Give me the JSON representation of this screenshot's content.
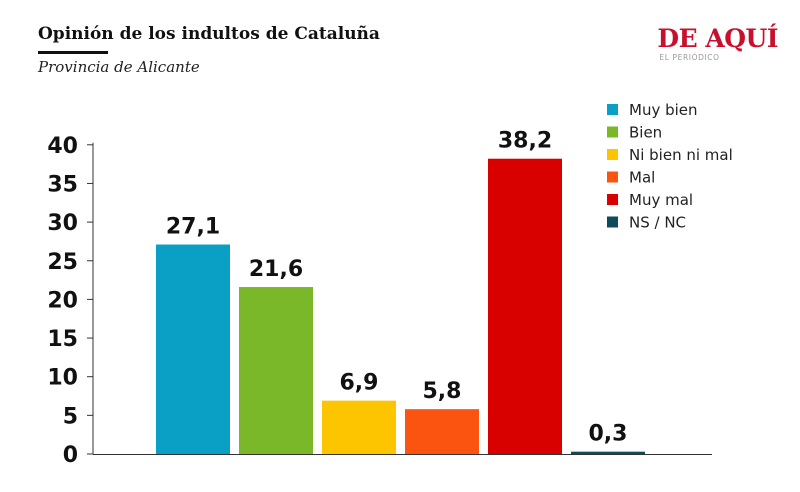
{
  "header": {
    "title": "Opinión de los indultos de Cataluña",
    "subtitle": "Provincia de Alicante"
  },
  "brand": {
    "name": "DE AQUÍ",
    "sub": "EL PERIÓDICO",
    "color": "#c8102e"
  },
  "chart_data": {
    "type": "bar",
    "title": "Opinión de los indultos de Cataluña",
    "subtitle": "Provincia de Alicante",
    "categories": [
      "Muy bien",
      "Bien",
      "Ni bien ni mal",
      "Mal",
      "Muy mal",
      "NS / NC"
    ],
    "values": [
      27.1,
      21.6,
      6.9,
      5.8,
      38.2,
      0.3
    ],
    "value_labels": [
      "27,1",
      "21,6",
      "6,9",
      "5,8",
      "38,2",
      "0,3"
    ],
    "colors": [
      "#0aa0c6",
      "#7ab829",
      "#fdc400",
      "#fb5310",
      "#d90000",
      "#0e4c5c"
    ],
    "ylim": [
      0,
      40
    ],
    "yticks": [
      0,
      5,
      10,
      15,
      20,
      25,
      30,
      35,
      40
    ],
    "xlabel": "",
    "ylabel": "",
    "grid": false,
    "legend": "top-right"
  }
}
